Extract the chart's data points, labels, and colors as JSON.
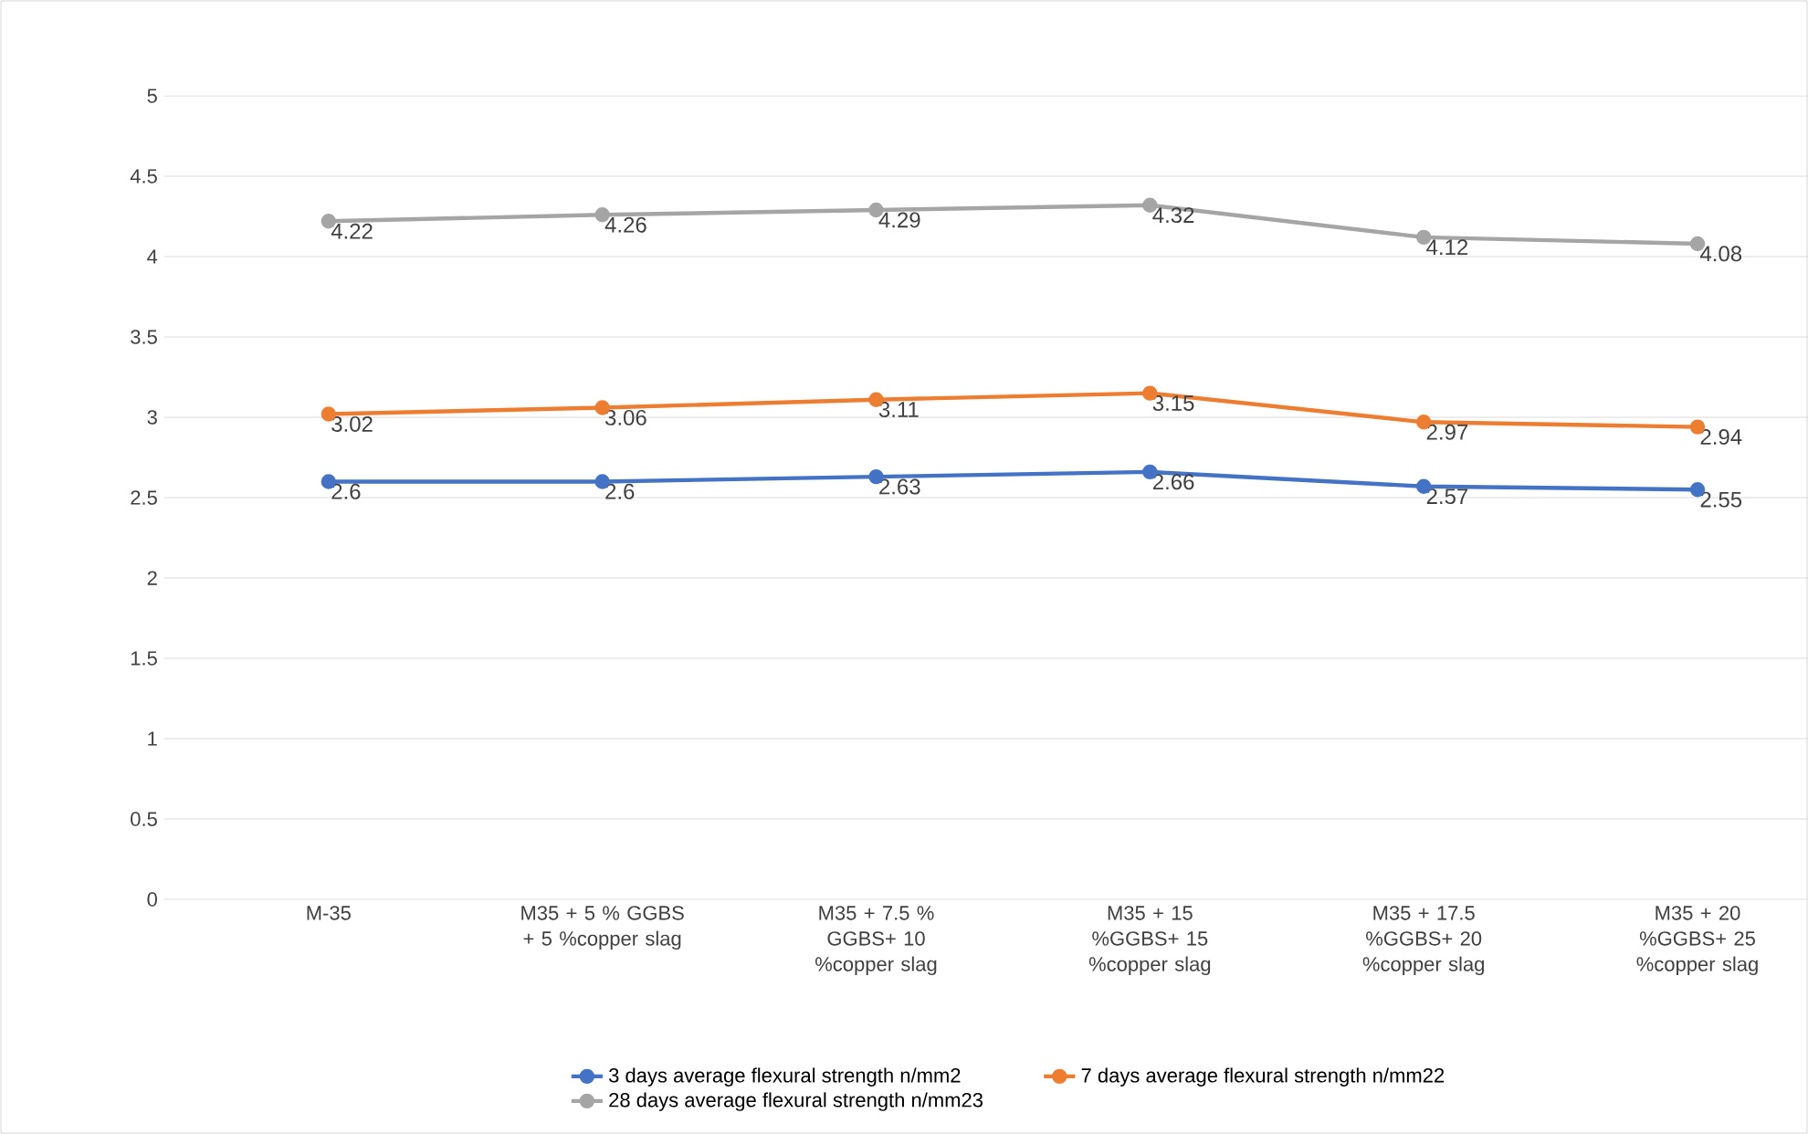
{
  "chart_data": {
    "type": "line",
    "categories": [
      "M-35",
      "M35 +   5 % GGBS + 5 %copper slag",
      "M35 +   7.5 % GGBS+ 10 %copper slag",
      "M35 +   15 %GGBS+ 15 %copper slag",
      "M35 +   17.5 %GGBS+ 20 %copper slag",
      "M35 +   20 %GGBS+ 25 %copper slag"
    ],
    "series": [
      {
        "name": "3 days average flexural strength n/mm2",
        "color": "#4472c4",
        "values": [
          2.6,
          2.6,
          2.63,
          2.66,
          2.57,
          2.55
        ]
      },
      {
        "name": "7 days average flexural strength n/mm22",
        "color": "#ed7d31",
        "values": [
          3.02,
          3.06,
          3.11,
          3.15,
          2.97,
          2.94
        ]
      },
      {
        "name": "28 days average flexural strength n/mm23",
        "color": "#a5a5a5",
        "values": [
          4.22,
          4.26,
          4.29,
          4.32,
          4.12,
          4.08
        ]
      }
    ],
    "ylim": [
      0,
      5
    ],
    "yticks": [
      0,
      0.5,
      1,
      1.5,
      2,
      2.5,
      3,
      3.5,
      4,
      4.5,
      5
    ],
    "grid": "y",
    "legend": "bottom",
    "marker": "circle",
    "line_style": "solid",
    "data_labels": true
  }
}
